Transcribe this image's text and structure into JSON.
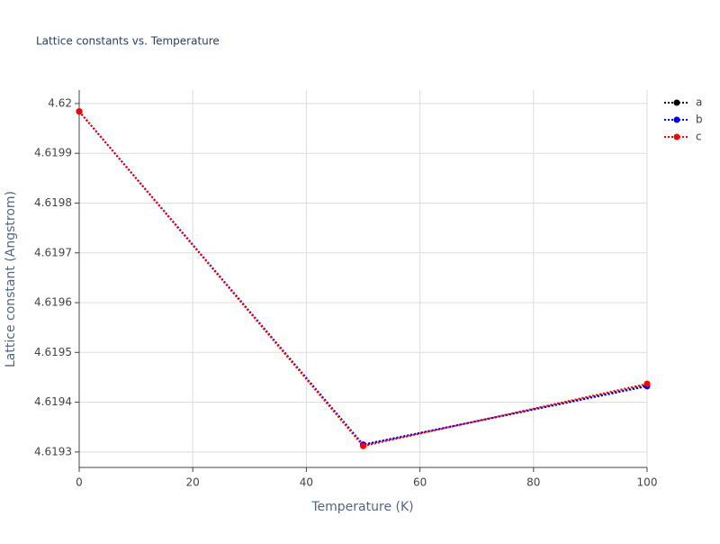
{
  "chart_data": {
    "type": "line",
    "title": "Lattice constants vs. Temperature",
    "x_label": "Temperature (K)",
    "y_label": "Lattice constant (Angstrom)",
    "x": [
      0,
      50,
      100
    ],
    "series": [
      {
        "name": "a",
        "color": "#000000",
        "values": [
          4.619984,
          4.619314,
          4.619434
        ]
      },
      {
        "name": "b",
        "color": "#0000ff",
        "values": [
          4.619984,
          4.619315,
          4.619432
        ]
      },
      {
        "name": "c",
        "color": "#ff0000",
        "values": [
          4.619984,
          4.619312,
          4.619437
        ]
      }
    ],
    "xlim": [
      0,
      100
    ],
    "xticks": [
      0,
      20,
      40,
      60,
      80,
      100
    ],
    "ylim": [
      4.619269,
      4.620027
    ],
    "yticks": [
      4.6193,
      4.6194,
      4.6195,
      4.6196,
      4.6197,
      4.6198,
      4.6199,
      4.62
    ],
    "grid": true,
    "legend_position": "right"
  }
}
